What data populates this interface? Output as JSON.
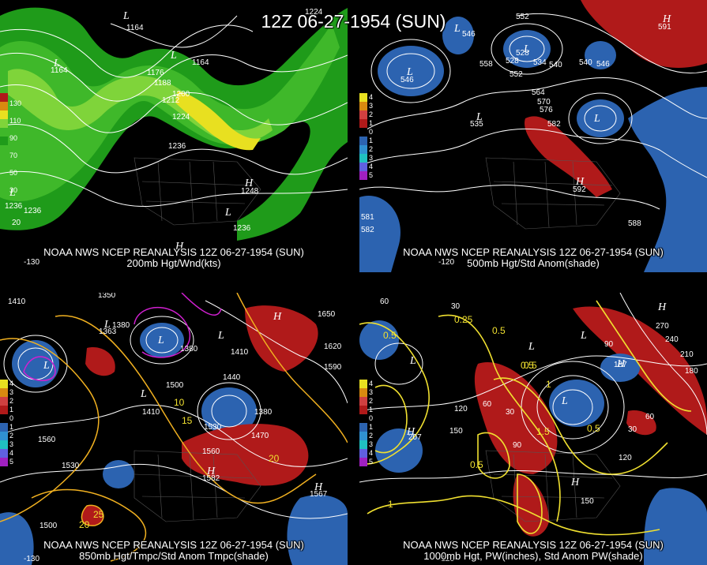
{
  "title": "12Z 06-27-1954 (SUN)",
  "colors": {
    "background": "#000000",
    "wind_green_light": "#7fd43a",
    "wind_green_dark": "#1f9b1a",
    "wind_yellow": "#e8e020",
    "anomaly_red": "#b01a1a",
    "anomaly_blue": "#2c63b0",
    "contour_white": "#ffffff",
    "contour_yellow": "#f0d020",
    "contour_magenta": "#d020d0"
  },
  "panels": [
    {
      "caption_line1": "NOAA NWS NCEP REANALYSIS 12Z 06-27-1954 (SUN)",
      "caption_line2": "200mb Hgt/Wnd(kts)",
      "legend": [
        "130",
        "110",
        "90",
        "70",
        "50",
        "30"
      ],
      "labels": [
        "1224",
        "1164",
        "1164",
        "1164",
        "1176",
        "1188",
        "1200",
        "1212",
        "1224",
        "1236",
        "1236",
        "1236",
        "1236",
        "1248",
        "20",
        "-130"
      ],
      "pressure_centers": [
        "L",
        "L",
        "L",
        "L",
        "L",
        "H",
        "H"
      ]
    },
    {
      "caption_line1": "NOAA NWS NCEP REANALYSIS 12Z 06-27-1954 (SUN)",
      "caption_line2": "500mb Hgt/Std Anom(shade)",
      "legend": [
        "4",
        "3",
        "2",
        "1",
        "0",
        "1",
        "2",
        "3",
        "4",
        "5"
      ],
      "labels": [
        "552",
        "546",
        "540",
        "528",
        "534",
        "540",
        "546",
        "558",
        "552",
        "564",
        "570",
        "576",
        "582",
        "588",
        "582",
        "591",
        "546",
        "528",
        "535",
        "592",
        "581",
        "-120"
      ],
      "pressure_centers": [
        "L",
        "L",
        "L",
        "L",
        "L",
        "H",
        "H"
      ]
    },
    {
      "caption_line1": "NOAA NWS NCEP REANALYSIS 12Z 06-27-1954 (SUN)",
      "caption_line2": "850mb Hgt/Tmpc/Std Anom Tmpc(shade)",
      "legend": [
        "4",
        "3",
        "2",
        "1",
        "0",
        "1",
        "2",
        "3",
        "4",
        "5"
      ],
      "labels": [
        "1410",
        "1350",
        "1380",
        "1363",
        "1380",
        "1410",
        "1440",
        "1500",
        "1530",
        "1560",
        "1560",
        "1590",
        "1620",
        "1650",
        "1470",
        "1380",
        "1410",
        "1500",
        "1530",
        "10",
        "15",
        "20",
        "25",
        "20",
        "1582",
        "1567",
        "-130"
      ],
      "pressure_centers": [
        "L",
        "L",
        "L",
        "L",
        "L",
        "H",
        "H",
        "H"
      ]
    },
    {
      "caption_line1": "NOAA NWS NCEP REANALYSIS 12Z 06-27-1954 (SUN)",
      "caption_line2": "1000mb Hgt, PW(inches), Std Anom PW(shade)",
      "legend": [
        "4",
        "3",
        "2",
        "1",
        "0",
        "1",
        "2",
        "3",
        "4",
        "5"
      ],
      "labels": [
        "60",
        "30",
        "0.5",
        "0.25",
        "0.5",
        "0.5",
        "120",
        "60",
        "30",
        "90",
        "150",
        "120",
        "90",
        "60",
        "30",
        "270",
        "240",
        "210",
        "180",
        "150",
        "207",
        "187",
        "0.5",
        "0.5",
        "1",
        "0.5",
        "1",
        "1.5",
        "-120"
      ],
      "pressure_centers": [
        "L",
        "L",
        "L",
        "L",
        "H",
        "H",
        "H",
        "H"
      ]
    }
  ]
}
